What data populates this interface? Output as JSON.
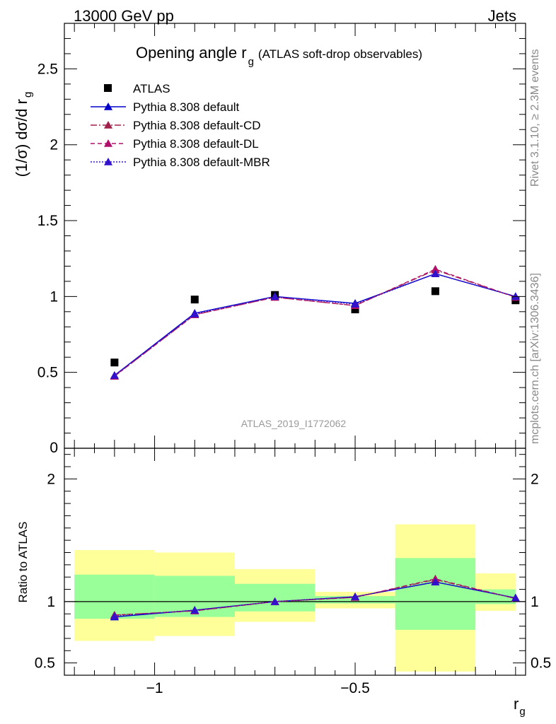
{
  "header": {
    "left": "13000 GeV pp",
    "right": "Jets"
  },
  "side_text": {
    "rivet": "Rivet 3.1.10, ≥ 2.3M events",
    "mcplots": "mcplots.cern.ch [arXiv:1306.3436]"
  },
  "analysis_label": "ATLAS_2019_I1772062",
  "chart_data": [
    {
      "type": "scatter",
      "title": "Opening angle r",
      "title_sub": "g",
      "title_suffix": "(ATLAS soft-drop observables)",
      "ylabel": "(1/σ) dσ/d r",
      "ylabel_sub": "g",
      "xlabel": "r",
      "xlabel_sub": "g",
      "xlim": [
        -1.225,
        -0.075
      ],
      "ylim": [
        0,
        2.8
      ],
      "xticks": [
        -1,
        -0.5
      ],
      "xtick_labels": [
        "−1",
        "−0.5"
      ],
      "yticks": [
        0.5,
        1,
        1.5,
        2,
        2.5
      ],
      "ytick_labels": [
        "0.5",
        "1",
        "1.5",
        "2",
        "2.5"
      ],
      "ylabel_zero": "0",
      "legend_position": "top-left",
      "x": [
        -1.1,
        -0.9,
        -0.7,
        -0.5,
        -0.3,
        -0.1
      ],
      "x_edges": [
        -1.2,
        -1.0,
        -0.8,
        -0.6,
        -0.4,
        -0.2,
        -0.1
      ],
      "series": [
        {
          "name": "ATLAS",
          "kind": "data",
          "color": "#000000",
          "values": [
            0.565,
            0.98,
            1.01,
            0.915,
            1.035,
            0.975
          ]
        },
        {
          "name": "Pythia 8.308 default",
          "kind": "mc",
          "color": "#0000cc",
          "dash": "",
          "values": [
            0.48,
            0.89,
            1.0,
            0.955,
            1.15,
            1.0
          ]
        },
        {
          "name": "Pythia 8.308 default-CD",
          "kind": "mc",
          "color": "#a0204a",
          "dash": "9,3,2,3",
          "values": [
            0.475,
            0.88,
            0.995,
            0.94,
            1.175,
            0.995
          ]
        },
        {
          "name": "Pythia 8.308 default-DL",
          "kind": "mc",
          "color": "#b0106a",
          "dash": "6,4",
          "values": [
            0.475,
            0.88,
            0.995,
            0.94,
            1.18,
            0.995
          ]
        },
        {
          "name": "Pythia 8.308 default-MBR",
          "kind": "mc",
          "color": "#3311cc",
          "dash": "2,2",
          "values": [
            0.48,
            0.885,
            1.0,
            0.95,
            1.15,
            1.0
          ]
        }
      ]
    },
    {
      "type": "ratio",
      "ylabel": "Ratio to ATLAS",
      "ylim": [
        0.4,
        2.25
      ],
      "yticks": [
        0.5,
        1,
        2
      ],
      "ytick_labels": [
        "0.5",
        "1",
        "2"
      ],
      "bands": {
        "yellow": {
          "color": "#ffff99",
          "low": [
            0.68,
            0.72,
            0.835,
            0.945,
            0.43,
            0.925
          ],
          "high": [
            1.42,
            1.4,
            1.265,
            1.08,
            1.63,
            1.23
          ]
        },
        "green": {
          "color": "#99ff99",
          "low": [
            0.86,
            0.875,
            0.92,
            0.985,
            0.77,
            0.98
          ],
          "high": [
            1.22,
            1.21,
            1.145,
            1.045,
            1.355,
            1.1
          ]
        }
      },
      "series": [
        {
          "name": "Pythia 8.308 default",
          "color": "#0000cc",
          "dash": "",
          "values": [
            0.875,
            0.93,
            1.0,
            1.04,
            1.16,
            1.03
          ]
        },
        {
          "name": "Pythia 8.308 default-CD",
          "color": "#a0204a",
          "dash": "9,3,2,3",
          "values": [
            0.89,
            0.925,
            1.0,
            1.035,
            1.18,
            1.025
          ]
        },
        {
          "name": "Pythia 8.308 default-DL",
          "color": "#b0106a",
          "dash": "6,4",
          "values": [
            0.89,
            0.925,
            1.0,
            1.035,
            1.185,
            1.025
          ]
        },
        {
          "name": "Pythia 8.308 default-MBR",
          "color": "#3311cc",
          "dash": "2,2",
          "values": [
            0.88,
            0.93,
            1.0,
            1.04,
            1.16,
            1.03
          ]
        }
      ]
    }
  ]
}
